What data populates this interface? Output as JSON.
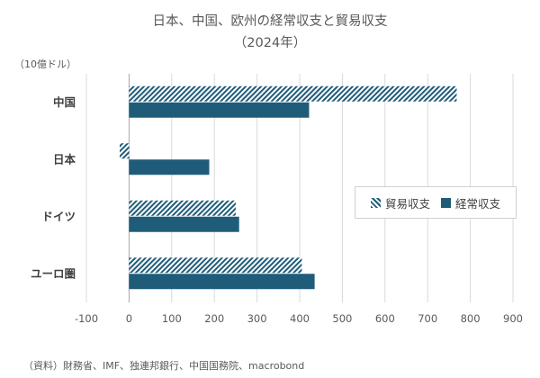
{
  "chart_data": {
    "type": "bar",
    "orientation": "horizontal",
    "title": "日本、中国、欧州の経常収支と貿易収支",
    "subtitle": "（2024年）",
    "unit_label": "（10億ドル）",
    "categories": [
      "中国",
      "日本",
      "ドイツ",
      "ユーロ圏"
    ],
    "series": [
      {
        "name": "貿易収支",
        "values": [
          768,
          -22,
          250,
          405
        ],
        "pattern": "hatch"
      },
      {
        "name": "経常収支",
        "values": [
          422,
          188,
          258,
          435
        ],
        "pattern": "solid"
      }
    ],
    "xlim": [
      -100,
      900
    ],
    "xticks": [
      -100,
      0,
      100,
      200,
      300,
      400,
      500,
      600,
      700,
      800,
      900
    ],
    "grid": true,
    "legend_position": "right",
    "colors": {
      "bar": "#1f5c7a",
      "grid": "#d9d9d9"
    }
  },
  "source": "（資料）財務省、IMF、独連邦銀行、中国国務院、macrobond"
}
